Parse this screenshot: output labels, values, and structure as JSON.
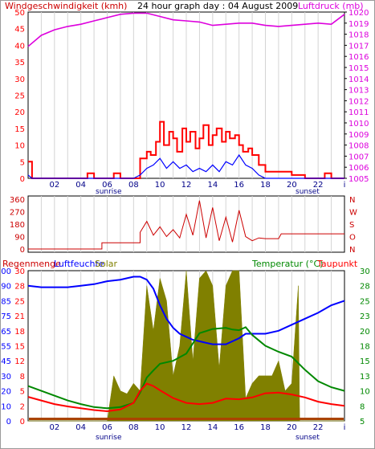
{
  "colors": {
    "red": "#ff0000",
    "magenta": "#dd00dd",
    "blue": "#0000ff",
    "green": "#008800",
    "olive": "#808000",
    "darkred": "#cc0000",
    "brown": "#aa4400",
    "darkblue": "#000088",
    "grid": "#d4d4d4"
  },
  "header": {
    "title": "24 hour graph day : 04 August 2009"
  },
  "chart_data": [
    {
      "type": "line",
      "ylabel_left": "Windgeschwindigkeit (kmh)",
      "ylabel_right": "Luftdruck (mb)",
      "x_tick_labels": [
        "02",
        "04",
        "06",
        "08",
        "10",
        "12",
        "14",
        "16",
        "18",
        "20",
        "22",
        "i"
      ],
      "x_annotations": {
        "sunrise": "sunrise",
        "sunset": "sunset"
      },
      "ylim_left": [
        0,
        50
      ],
      "ylim_right": [
        1005,
        1020
      ],
      "yticks_left": [
        "0",
        "5",
        "10",
        "15",
        "20",
        "25",
        "30",
        "35",
        "40",
        "45",
        "50"
      ],
      "yticks_right": [
        "1005",
        "1006",
        "1007",
        "1008",
        "1009",
        "1010",
        "1011",
        "1012",
        "1013",
        "1014",
        "1015",
        "1016",
        "1017",
        "1018",
        "1019",
        "1020"
      ],
      "series": [
        {
          "name": "Luftdruck (mb)",
          "axis": "right",
          "hours": [
            0,
            1,
            2,
            3,
            4,
            5,
            6,
            7,
            8,
            9,
            10,
            11,
            12,
            13,
            14,
            15,
            16,
            17,
            18,
            19,
            20,
            21,
            22,
            23,
            24
          ],
          "values": [
            1016.9,
            1017.9,
            1018.4,
            1018.7,
            1018.9,
            1019.2,
            1019.5,
            1019.8,
            1019.9,
            1019.9,
            1019.6,
            1019.3,
            1019.2,
            1019.1,
            1018.8,
            1018.9,
            1019.0,
            1019.0,
            1018.8,
            1018.7,
            1018.8,
            1018.9,
            1019.0,
            1018.9,
            1019.8
          ]
        },
        {
          "name": "Wind gust",
          "axis": "left",
          "hours": [
            0,
            0.3,
            0.6,
            1,
            2,
            3,
            4,
            4.5,
            5,
            5.5,
            6,
            6.5,
            7,
            7.5,
            8,
            8.5,
            9,
            9.3,
            9.7,
            10,
            10.3,
            10.7,
            11,
            11.3,
            11.7,
            12,
            12.3,
            12.7,
            13,
            13.3,
            13.7,
            14,
            14.3,
            14.7,
            15,
            15.3,
            15.7,
            16,
            16.3,
            16.7,
            17,
            17.5,
            18,
            18.5,
            19,
            20,
            21,
            22,
            22.5,
            23,
            24
          ],
          "values": [
            5,
            0,
            0,
            0,
            0,
            0,
            0,
            1.5,
            0,
            0,
            0,
            1.5,
            0,
            0,
            0,
            6,
            8,
            7,
            11,
            17,
            10,
            14,
            12,
            8,
            15,
            11,
            14,
            9,
            12,
            16,
            10,
            13,
            15,
            11,
            14,
            12,
            13,
            10,
            8,
            9,
            7,
            4,
            2,
            2,
            2,
            1,
            0,
            0,
            1.5,
            0,
            0
          ]
        },
        {
          "name": "Windgeschwindigkeit (kmh)",
          "axis": "left",
          "hours": [
            0,
            0.3,
            0.6,
            1,
            2,
            3,
            4,
            5,
            6,
            7,
            8,
            8.5,
            9,
            9.5,
            10,
            10.5,
            11,
            11.5,
            12,
            12.5,
            13,
            13.5,
            14,
            14.5,
            15,
            15.5,
            16,
            16.5,
            17,
            17.5,
            18,
            19,
            20,
            21,
            22,
            23,
            24
          ],
          "values": [
            1,
            0,
            0,
            0,
            0,
            0,
            0,
            0,
            0,
            0,
            0,
            1,
            3,
            4,
            6,
            3,
            5,
            3,
            4,
            2,
            3,
            2,
            4,
            2,
            5,
            4,
            7,
            4,
            3,
            1,
            0,
            0,
            0,
            0,
            0,
            0,
            0
          ]
        }
      ]
    },
    {
      "type": "line",
      "ylabel_left_ticks": [
        "360",
        "270",
        "180",
        "90",
        "0"
      ],
      "ylabel_right_ticks": [
        "N",
        "W",
        "S",
        "O",
        "N"
      ],
      "ylim": [
        0,
        360
      ],
      "series": [
        {
          "name": "Windrichtung",
          "hours": [
            0,
            5.6,
            5.6,
            8.5,
            8.5,
            9,
            9.5,
            10,
            10.5,
            11,
            11.5,
            12,
            12.5,
            13,
            13.5,
            14,
            14.5,
            15,
            15.5,
            16,
            16.5,
            17,
            17.5,
            18,
            19,
            19.2,
            24
          ],
          "values": [
            0,
            0,
            45,
            45,
            120,
            200,
            100,
            160,
            90,
            140,
            80,
            250,
            100,
            350,
            80,
            300,
            60,
            230,
            50,
            280,
            90,
            60,
            80,
            75,
            75,
            110,
            110
          ]
        }
      ]
    },
    {
      "type": "line",
      "labels": {
        "regen": "Regenmenge",
        "feuchte": "Luftfeuchte",
        "solar": "Solar",
        "temp": "Temperatur (°C)",
        "taupunkt": "Taupunkt"
      },
      "x_tick_labels": [
        "02",
        "04",
        "06",
        "08",
        "10",
        "12",
        "14",
        "16",
        "18",
        "20",
        "22",
        "i"
      ],
      "x_annotations": {
        "sunrise": "sunrise",
        "sunset": "sunset"
      },
      "ylim_left": [
        0,
        100
      ],
      "ylim_right": [
        5,
        30
      ],
      "yticks_left": [
        "0",
        "10",
        "20",
        "30",
        "45",
        "55",
        "65",
        "75",
        "85",
        "90",
        "100"
      ],
      "yticks_feuchte": [
        "0",
        "2",
        "5",
        "8",
        "12",
        "15",
        "18",
        "21",
        "25",
        "28",
        "30"
      ],
      "yticks_right": [
        "5",
        "8",
        "10",
        "13",
        "15",
        "18",
        "20",
        "23",
        "25",
        "28",
        "30"
      ],
      "series": [
        {
          "name": "Luftfeuchte",
          "hours": [
            0,
            1,
            2,
            3,
            4,
            5,
            6,
            7,
            7.5,
            8,
            8.5,
            9,
            9.5,
            10,
            10.5,
            11,
            11.5,
            12,
            12.5,
            13,
            13.5,
            14,
            14.5,
            15,
            15.5,
            16,
            16.5,
            17,
            17.5,
            18,
            19,
            20,
            21,
            22,
            23,
            24
          ],
          "values": [
            90,
            89,
            89,
            89,
            90,
            91,
            93,
            94,
            95,
            96,
            96,
            94,
            88,
            77,
            68,
            62,
            58,
            56,
            54,
            53,
            52,
            51,
            51,
            51,
            53,
            55,
            58,
            58,
            58,
            58,
            60,
            64,
            68,
            72,
            77,
            80
          ]
        },
        {
          "name": "Temperatur (°C)",
          "hours": [
            0,
            1,
            2,
            3,
            4,
            5,
            6,
            7,
            8,
            8.5,
            9,
            9.5,
            10,
            11,
            12,
            13,
            14,
            15,
            15.5,
            16,
            16.5,
            17,
            17.5,
            18,
            19,
            20,
            21,
            22,
            23,
            24
          ],
          "values": [
            10.8,
            10.0,
            9.2,
            8.4,
            7.8,
            7.3,
            7.1,
            7.3,
            8.0,
            9.7,
            12.2,
            13.4,
            14.5,
            15.0,
            16.2,
            19.6,
            20.3,
            20.5,
            20.2,
            20.1,
            20.6,
            19.3,
            18.4,
            17.5,
            16.5,
            15.7,
            13.5,
            11.6,
            10.6,
            10.0
          ]
        },
        {
          "name": "Taupunkt",
          "hours": [
            0,
            1,
            2,
            3,
            4,
            5,
            6,
            7,
            8,
            8.5,
            9,
            9.5,
            10,
            11,
            12,
            13,
            14,
            15,
            16,
            17,
            18,
            19,
            20,
            21,
            22,
            23,
            24
          ],
          "values": [
            9,
            8.4,
            7.8,
            7.4,
            7.1,
            6.8,
            6.6,
            6.9,
            8,
            10,
            11.2,
            10.8,
            10.1,
            8.8,
            8,
            7.8,
            8,
            8.7,
            8.6,
            8.9,
            9.6,
            9.7,
            9.4,
            8.9,
            8.2,
            7.8,
            7.5
          ]
        },
        {
          "name": "Solar",
          "hours": [
            0,
            6,
            6.5,
            7,
            7.5,
            8,
            8.5,
            9,
            9.5,
            10,
            10.5,
            11,
            11.5,
            12,
            12.5,
            13,
            13.5,
            14,
            14.5,
            15,
            15.5,
            16,
            16.5,
            17,
            17.5,
            18,
            18.5,
            19,
            19.5,
            20,
            20.5,
            20.6,
            24
          ],
          "values": [
            0,
            0,
            30,
            20,
            18,
            25,
            20,
            90,
            60,
            95,
            80,
            30,
            50,
            100,
            40,
            95,
            100,
            90,
            35,
            90,
            100,
            100,
            15,
            25,
            30,
            30,
            30,
            40,
            20,
            25,
            90,
            0,
            0
          ]
        }
      ]
    }
  ]
}
